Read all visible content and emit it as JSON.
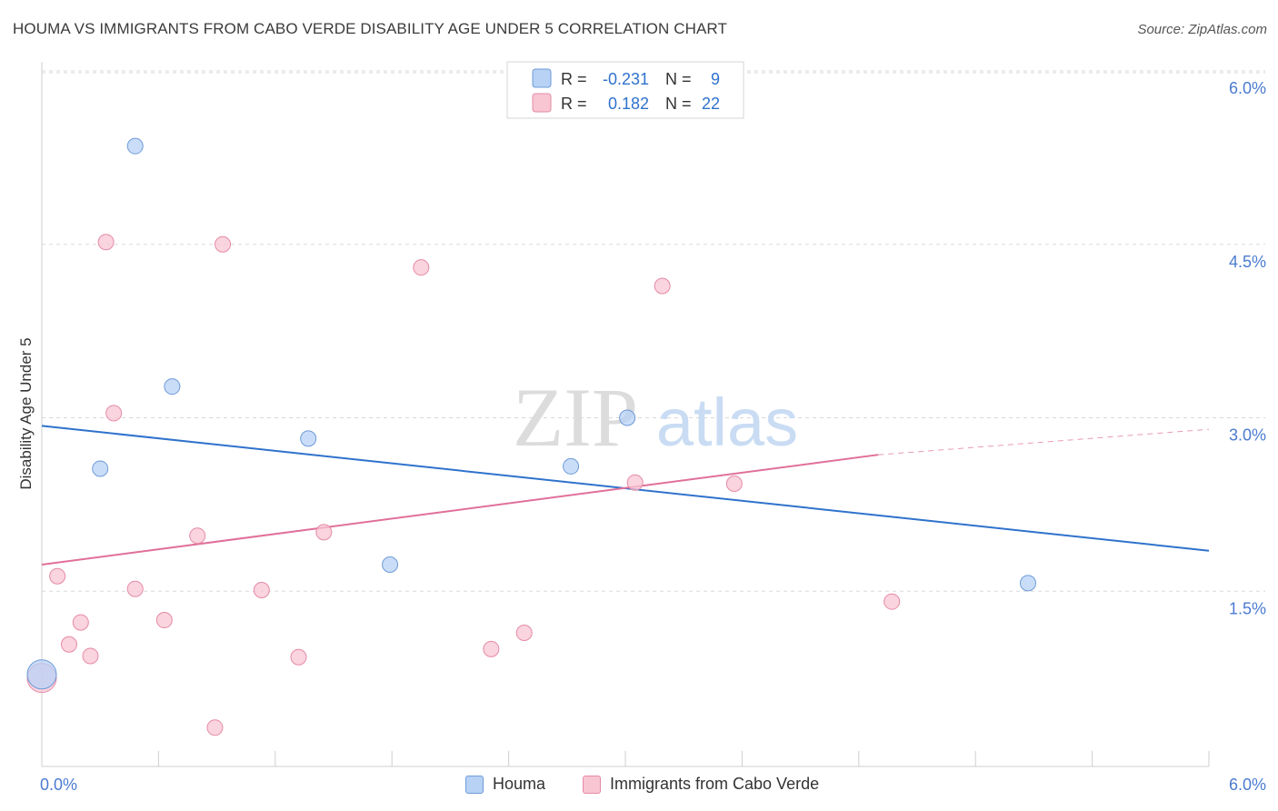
{
  "header": {
    "title": "HOUMA VS IMMIGRANTS FROM CABO VERDE DISABILITY AGE UNDER 5 CORRELATION CHART",
    "source": "Source: ZipAtlas.com"
  },
  "watermark": {
    "zip": "ZIP",
    "atlas": "atlas"
  },
  "colors": {
    "houma_fill": "#b8d2f5",
    "houma_stroke": "#6e9bd8",
    "houma_line": "#2f72cc",
    "cabo_fill": "#f8c5d3",
    "cabo_stroke": "#e58aa6",
    "cabo_line": "#e0709a",
    "tick_label": "#4b7bd0",
    "grid": "#d9d9d9"
  },
  "legend_top": [
    {
      "r_label": "R =",
      "r_value": "-0.231",
      "n_label": "N =",
      "n_value": "9"
    },
    {
      "r_label": "R =",
      "r_value": "0.182",
      "n_label": "N =",
      "n_value": "22"
    }
  ],
  "chart_data": {
    "type": "scatter",
    "title": "HOUMA VS IMMIGRANTS FROM CABO VERDE DISABILITY AGE UNDER 5 CORRELATION CHART",
    "xlabel": "",
    "ylabel": "Disability Age Under 5",
    "xlim": [
      0,
      6.0
    ],
    "ylim": [
      0,
      6.0
    ],
    "x_tick_labels": [
      "0.0%",
      "6.0%"
    ],
    "y_ticks": [
      1.5,
      3.0,
      4.5,
      6.0
    ],
    "y_tick_labels": [
      "1.5%",
      "3.0%",
      "4.5%",
      "6.0%"
    ],
    "grid": true,
    "legend_position": "top-center",
    "series": [
      {
        "name": "Houma",
        "points": [
          {
            "x": 0.0,
            "y": 0.78,
            "size": "large"
          },
          {
            "x": 0.3,
            "y": 2.56
          },
          {
            "x": 0.48,
            "y": 5.35
          },
          {
            "x": 0.67,
            "y": 3.27
          },
          {
            "x": 1.37,
            "y": 2.82
          },
          {
            "x": 1.79,
            "y": 1.73
          },
          {
            "x": 2.72,
            "y": 2.58
          },
          {
            "x": 3.01,
            "y": 3.0
          },
          {
            "x": 5.07,
            "y": 1.57
          }
        ],
        "trend": {
          "x": [
            0.0,
            6.0
          ],
          "y": [
            2.93,
            1.85
          ]
        }
      },
      {
        "name": "Immigrants from Cabo Verde",
        "points": [
          {
            "x": 0.0,
            "y": 0.75,
            "size": "large"
          },
          {
            "x": 0.08,
            "y": 1.63
          },
          {
            "x": 0.14,
            "y": 1.04
          },
          {
            "x": 0.2,
            "y": 1.23
          },
          {
            "x": 0.25,
            "y": 0.94
          },
          {
            "x": 0.33,
            "y": 4.52
          },
          {
            "x": 0.37,
            "y": 3.04
          },
          {
            "x": 0.48,
            "y": 1.52
          },
          {
            "x": 0.63,
            "y": 1.25
          },
          {
            "x": 0.8,
            "y": 1.98
          },
          {
            "x": 0.89,
            "y": 0.32
          },
          {
            "x": 0.93,
            "y": 4.5
          },
          {
            "x": 1.13,
            "y": 1.51
          },
          {
            "x": 1.32,
            "y": 0.93
          },
          {
            "x": 1.45,
            "y": 2.01
          },
          {
            "x": 1.95,
            "y": 4.3
          },
          {
            "x": 2.31,
            "y": 1.0
          },
          {
            "x": 2.48,
            "y": 1.14
          },
          {
            "x": 3.05,
            "y": 2.44
          },
          {
            "x": 3.19,
            "y": 4.14
          },
          {
            "x": 3.56,
            "y": 2.43
          },
          {
            "x": 4.37,
            "y": 1.41
          }
        ],
        "trend": {
          "x": [
            0.0,
            4.3
          ],
          "y": [
            1.73,
            2.68
          ]
        },
        "trend_extension": {
          "x": [
            4.3,
            6.0
          ],
          "y": [
            2.68,
            2.9
          ]
        }
      }
    ]
  }
}
